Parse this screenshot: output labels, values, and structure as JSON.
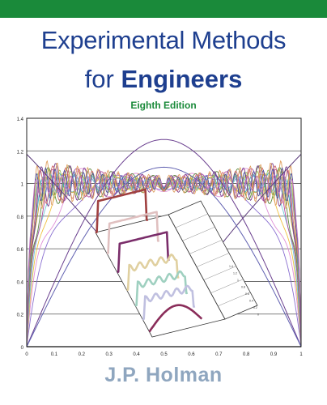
{
  "cover": {
    "title_line1": "Experimental Methods",
    "title_line2_prefix": "for",
    "title_line2_main": "Engineers",
    "edition": "Eighth Edition",
    "author": "J.P. Holman"
  },
  "colors": {
    "banner": "#1a8a3a",
    "title": "#1e3f8f",
    "edition": "#1a8a3a",
    "author": "#8fa6bf"
  },
  "plot_axes": {
    "y_ticks": [
      "0",
      "0.2",
      "0.4",
      "0.6",
      "0.8",
      "1",
      "1.2",
      "1.4"
    ],
    "x_ticks": [
      "0",
      "0.1",
      "0.2",
      "0.3",
      "0.4",
      "0.5",
      "0.6",
      "0.7",
      "0.8",
      "0.9",
      "1"
    ]
  },
  "inset_axis_ticks": [
    "1.4",
    "1.2",
    "1",
    "0.8",
    "0.6",
    "0.4",
    "0.2",
    "0"
  ]
}
